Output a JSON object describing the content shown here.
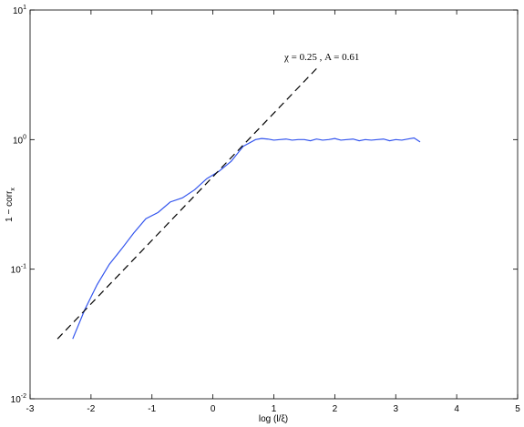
{
  "chart_data": {
    "type": "line",
    "xlabel": "log (l/ξ)",
    "ylabel": "1 − corr_x",
    "annotation": "χ = 0.25  ,  A = 0.61",
    "log_y": true,
    "xlim": [
      -3,
      5
    ],
    "xticks": [
      -3,
      -2,
      -1,
      0,
      1,
      2,
      3,
      4,
      5
    ],
    "ylim": [
      0.01,
      10
    ],
    "yticks": [
      {
        "value": 0.01,
        "label": "10^-2"
      },
      {
        "value": 0.1,
        "label": "10^-1"
      },
      {
        "value": 1,
        "label": "10^0"
      },
      {
        "value": 10,
        "label": "10^1"
      }
    ],
    "series": [
      {
        "color": "#3355ee",
        "dash": false,
        "x": [
          -2.3,
          -2.1,
          -1.9,
          -1.7,
          -1.5,
          -1.3,
          -1.1,
          -0.9,
          -0.7,
          -0.5,
          -0.3,
          -0.1,
          0.1,
          0.3,
          0.5,
          0.7,
          0.8,
          0.9,
          1.0,
          1.1,
          1.2,
          1.3,
          1.4,
          1.5,
          1.6,
          1.7,
          1.8,
          1.9,
          2.0,
          2.1,
          2.2,
          2.3,
          2.4,
          2.5,
          2.6,
          2.7,
          2.8,
          2.9,
          3.0,
          3.1,
          3.2,
          3.3,
          3.4
        ],
        "values": [
          0.029,
          0.049,
          0.076,
          0.109,
          0.143,
          0.19,
          0.245,
          0.274,
          0.33,
          0.355,
          0.41,
          0.5,
          0.57,
          0.68,
          0.89,
          1.0,
          1.02,
          1.01,
          0.99,
          1.0,
          1.01,
          0.99,
          1.0,
          1.0,
          0.98,
          1.01,
          0.99,
          1.0,
          1.02,
          0.99,
          1.0,
          1.01,
          0.98,
          1.0,
          0.99,
          1.0,
          1.01,
          0.98,
          1.0,
          0.99,
          1.01,
          1.03,
          0.96
        ]
      },
      {
        "color": "#000000",
        "dash": true,
        "x": [
          -2.55,
          1.7
        ],
        "values": [
          0.029,
          3.53
        ]
      }
    ]
  }
}
